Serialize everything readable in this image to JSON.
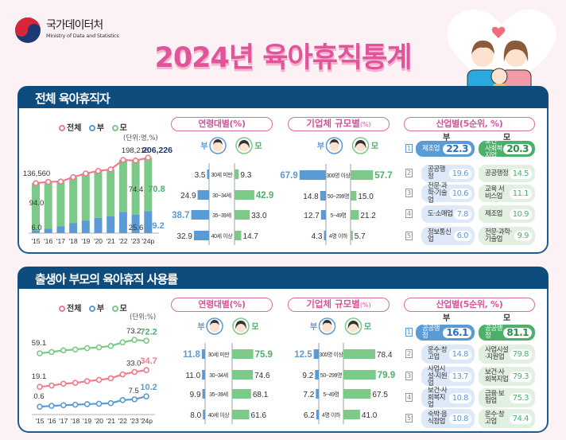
{
  "header": {
    "org_name": "국가데이터처",
    "org_en": "Ministry of Data and Statistics",
    "title": "2024년 육아휴직통계"
  },
  "colors": {
    "total": "#ef7b8e",
    "father": "#5b9bd5",
    "mother": "#7cc98a",
    "title": "#e0559a",
    "panel": "#0f4c7e"
  },
  "legend": {
    "total": "전체",
    "father": "부",
    "mother": "모"
  },
  "faces": {
    "father": "부",
    "mother": "모"
  },
  "sections": [
    {
      "title": "전체 육아휴직자",
      "unit": "(단위:명,%)",
      "age_title": "연령대별",
      "firm_title": "기업체 규모별",
      "pct": "(%)",
      "industry_title": "산업별",
      "industry_unit": "(5순위, %)",
      "industry_father": "부",
      "industry_mother": "모"
    },
    {
      "title": "출생아 부모의 육아휴직 사용률",
      "unit": "(단위:%)",
      "age_title": "연령대별",
      "firm_title": "기업체 규모별",
      "pct": "(%)",
      "industry_title": "산업별",
      "industry_unit": "(5순위, %)",
      "industry_father": "부",
      "industry_mother": "모"
    }
  ],
  "chart_data": [
    {
      "type": "bar+line",
      "categories": [
        "'15",
        "'16",
        "'17",
        "'18",
        "'19",
        "'20",
        "'21",
        "'22",
        "'23",
        "'24p"
      ],
      "series": [
        {
          "name": "전체",
          "kind": "line",
          "values": [
            136560,
            140000,
            141000,
            153000,
            163000,
            170000,
            174000,
            200000,
            198218,
            206226
          ],
          "labels": [
            "136,560",
            null,
            null,
            null,
            null,
            null,
            null,
            null,
            "198,218",
            "206,226"
          ]
        },
        {
          "name": "부",
          "kind": "stacked-share",
          "values": [
            6.0,
            8.5,
            13.4,
            17.8,
            21.2,
            24.5,
            26.3,
            28.9,
            25.6,
            29.2
          ],
          "labels": [
            "6.0",
            null,
            null,
            null,
            null,
            null,
            null,
            null,
            "25.6",
            "29.2"
          ]
        },
        {
          "name": "모",
          "kind": "stacked-share",
          "values": [
            94.0,
            91.5,
            86.6,
            82.2,
            78.8,
            75.5,
            73.7,
            71.1,
            74.4,
            70.8
          ],
          "labels": [
            "94.0",
            null,
            null,
            null,
            null,
            null,
            null,
            null,
            "74.4",
            "70.8"
          ]
        }
      ]
    },
    {
      "type": "bar",
      "title": "연령대별(%)",
      "categories": [
        "30세 미만",
        "30~34세",
        "35~39세",
        "40세 이상"
      ],
      "series": [
        {
          "name": "부",
          "values": [
            3.5,
            24.9,
            38.7,
            32.9
          ]
        },
        {
          "name": "모",
          "values": [
            9.3,
            42.9,
            33.0,
            14.7
          ]
        }
      ]
    },
    {
      "type": "bar",
      "title": "기업체 규모별(%)",
      "categories": [
        "300명 이상",
        "50~299명",
        "5~49명",
        "4명 이하"
      ],
      "series": [
        {
          "name": "부",
          "values": [
            67.9,
            14.8,
            12.7,
            4.3
          ]
        },
        {
          "name": "모",
          "values": [
            57.7,
            15.0,
            21.2,
            5.7
          ]
        }
      ]
    },
    {
      "type": "table",
      "title": "산업별(5순위, %)",
      "columns": [
        "부",
        "모"
      ],
      "ranks": [
        "1",
        "2",
        "3",
        "4",
        "5"
      ],
      "father": [
        {
          "name": "제조업",
          "value": "22.3"
        },
        {
          "name": "공공행정",
          "value": "19.6"
        },
        {
          "name": "전문·과학·기술업",
          "value": "10.6"
        },
        {
          "name": "도·소매업",
          "value": "7.8"
        },
        {
          "name": "정보통신업",
          "value": "6.0"
        }
      ],
      "mother": [
        {
          "name": "보건·사회복지업",
          "value": "20.3"
        },
        {
          "name": "공공행정",
          "value": "14.5"
        },
        {
          "name": "교육 서비스업",
          "value": "11.1"
        },
        {
          "name": "제조업",
          "value": "10.9"
        },
        {
          "name": "전문·과학·기술업",
          "value": "9.9"
        }
      ]
    },
    {
      "type": "line",
      "categories": [
        "'15",
        "'16",
        "'17",
        "'18",
        "'19",
        "'20",
        "'21",
        "'22",
        "'23",
        "'24p"
      ],
      "series": [
        {
          "name": "모",
          "values": [
            59.1,
            60.5,
            62.2,
            63.1,
            64.5,
            65.4,
            66.8,
            70.6,
            73.2,
            72.2
          ],
          "labels": [
            "59.1",
            null,
            null,
            null,
            null,
            null,
            null,
            null,
            "73.2",
            "72.2"
          ]
        },
        {
          "name": "전체",
          "values": [
            19.1,
            20.3,
            22.0,
            22.8,
            24.4,
            25.6,
            27.1,
            30.7,
            33.0,
            34.7
          ],
          "labels": [
            "19.1",
            null,
            null,
            null,
            null,
            null,
            null,
            null,
            "33.0",
            "34.7"
          ]
        },
        {
          "name": "부",
          "values": [
            0.6,
            1.4,
            2.0,
            2.5,
            3.0,
            3.4,
            3.9,
            6.8,
            7.5,
            10.2
          ],
          "labels": [
            "0.6",
            null,
            null,
            null,
            null,
            null,
            null,
            null,
            "7.5",
            "10.2"
          ]
        }
      ]
    },
    {
      "type": "bar",
      "title": "연령대별(%)",
      "categories": [
        "30세 미만",
        "30~34세",
        "35~39세",
        "40세 이상"
      ],
      "series": [
        {
          "name": "부",
          "values": [
            11.8,
            11.0,
            9.9,
            8.0
          ]
        },
        {
          "name": "모",
          "values": [
            75.9,
            74.6,
            68.1,
            61.6
          ]
        }
      ]
    },
    {
      "type": "bar",
      "title": "기업체 규모별(%)",
      "categories": [
        "300명 이상",
        "50~299명",
        "5~49명",
        "4명 이하"
      ],
      "series": [
        {
          "name": "부",
          "values": [
            12.5,
            9.2,
            7.2,
            6.2
          ]
        },
        {
          "name": "모",
          "values": [
            78.4,
            79.9,
            67.5,
            41.0
          ]
        }
      ]
    },
    {
      "type": "table",
      "title": "산업별(5순위, %)",
      "columns": [
        "부",
        "모"
      ],
      "ranks": [
        "1",
        "2",
        "3",
        "4",
        "5"
      ],
      "father": [
        {
          "name": "공공행정",
          "value": "16.1"
        },
        {
          "name": "운수·창고업",
          "value": "14.8"
        },
        {
          "name": "사업시설·지원업",
          "value": "13.7"
        },
        {
          "name": "보건·사회복지업",
          "value": "10.8"
        },
        {
          "name": "숙박·음식점업",
          "value": "10.8"
        }
      ],
      "mother": [
        {
          "name": "공공행정",
          "value": "81.1"
        },
        {
          "name": "사업시설·지원업",
          "value": "79.8"
        },
        {
          "name": "보건·사회복지업",
          "value": "79.3"
        },
        {
          "name": "금융·보험업",
          "value": "75.3"
        },
        {
          "name": "운수·창고업",
          "value": "74.4"
        }
      ]
    }
  ]
}
